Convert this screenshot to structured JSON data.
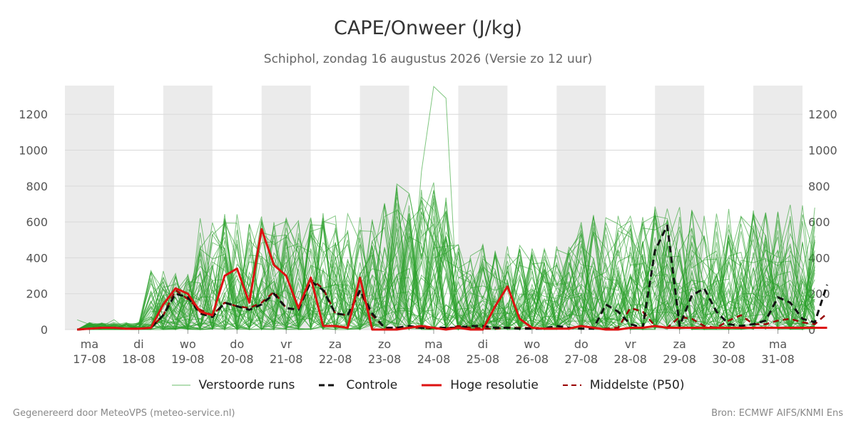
{
  "header": {
    "title": "CAPE/Onweer (J/kg)",
    "subtitle": "Schiphol, zondag 16 augustus 2026 (Versie zo 12 uur)"
  },
  "footer": {
    "left": "Gegenereerd door MeteoVPS (meteo-service.nl)",
    "right": "Bron: ECMWF AIFS/KNMI Ens"
  },
  "legend": {
    "perturbed": "Verstoorde runs",
    "control": "Controle",
    "highres": "Hoge resolutie",
    "median": "Middelste (P50)"
  },
  "colors": {
    "perturbed": "#2ca02c",
    "control": "#111111",
    "highres": "#dd1111",
    "median": "#990000",
    "weekend_band": "#ebebeb",
    "grid": "#d9d9d9"
  },
  "chart_data": {
    "type": "line",
    "title": "CAPE/Onweer (J/kg)",
    "ylim": [
      0,
      1360
    ],
    "yticks": [
      0,
      200,
      400,
      600,
      800,
      1000,
      1200
    ],
    "xlim_days": [
      16.5,
      31.5
    ],
    "x_unit": "days (August 2026); each step = 0.25 day",
    "x_start_day": 16.75,
    "day_labels": [
      {
        "dow": "ma",
        "date": "17-08"
      },
      {
        "dow": "di",
        "date": "18-08"
      },
      {
        "dow": "wo",
        "date": "19-08"
      },
      {
        "dow": "do",
        "date": "20-08"
      },
      {
        "dow": "vr",
        "date": "21-08"
      },
      {
        "dow": "za",
        "date": "22-08"
      },
      {
        "dow": "zo",
        "date": "23-08"
      },
      {
        "dow": "ma",
        "date": "24-08"
      },
      {
        "dow": "di",
        "date": "25-08"
      },
      {
        "dow": "wo",
        "date": "26-08"
      },
      {
        "dow": "do",
        "date": "27-08"
      },
      {
        "dow": "vr",
        "date": "28-08"
      },
      {
        "dow": "za",
        "date": "29-08"
      },
      {
        "dow": "zo",
        "date": "30-08"
      },
      {
        "dow": "ma",
        "date": "31-08"
      }
    ],
    "grid": true,
    "legend_position": "bottom",
    "series": [
      {
        "name": "Controle",
        "values": [
          0,
          5,
          10,
          10,
          5,
          5,
          10,
          80,
          200,
          180,
          90,
          70,
          150,
          130,
          110,
          140,
          200,
          120,
          110,
          270,
          220,
          90,
          80,
          220,
          90,
          10,
          10,
          20,
          10,
          10,
          10,
          10,
          20,
          20,
          10,
          10,
          5,
          5,
          5,
          20,
          10,
          5,
          5,
          140,
          100,
          30,
          10,
          440,
          580,
          20,
          190,
          230,
          100,
          30,
          20,
          30,
          50,
          180,
          150,
          60,
          40,
          250
        ]
      },
      {
        "name": "Hoge resolutie",
        "values": [
          0,
          5,
          10,
          10,
          5,
          5,
          10,
          140,
          230,
          200,
          100,
          80,
          300,
          340,
          150,
          560,
          360,
          300,
          120,
          290,
          20,
          20,
          10,
          290,
          0,
          0,
          0,
          10,
          20,
          10,
          0,
          10,
          0,
          0,
          130,
          240,
          60,
          10,
          5,
          5,
          5,
          20,
          10,
          0,
          0,
          10,
          10,
          20,
          10,
          10,
          10,
          10,
          10,
          10,
          10,
          10,
          10,
          10,
          10,
          10,
          10,
          10
        ]
      },
      {
        "name": "Middelste (P50)",
        "values": [
          0,
          5,
          10,
          10,
          5,
          5,
          10,
          80,
          220,
          170,
          110,
          80,
          150,
          130,
          120,
          150,
          210,
          120,
          110,
          280,
          230,
          90,
          80,
          210,
          80,
          10,
          10,
          10,
          10,
          5,
          5,
          20,
          10,
          5,
          5,
          10,
          10,
          10,
          5,
          5,
          5,
          20,
          10,
          5,
          10,
          120,
          100,
          20,
          10,
          70,
          60,
          20,
          10,
          50,
          80,
          30,
          30,
          50,
          60,
          40,
          30,
          90
        ]
      }
    ],
    "ensemble_members": 50,
    "ensemble_peak": 1360
  }
}
